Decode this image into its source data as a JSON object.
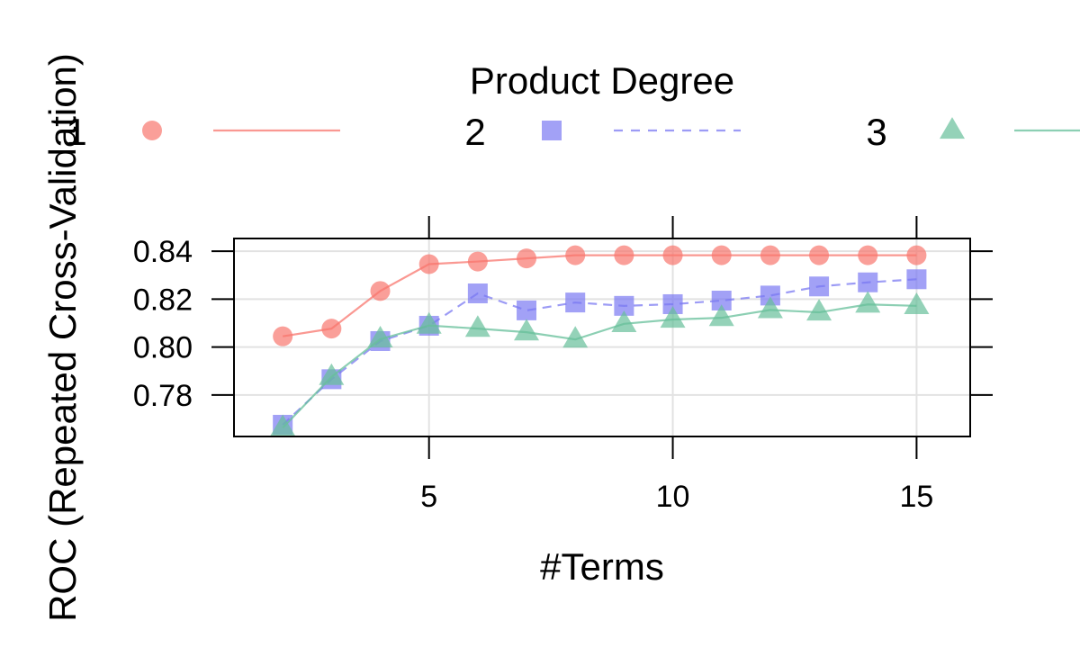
{
  "chart_data": {
    "type": "line",
    "title": "",
    "xlabel": "#Terms",
    "ylabel": "ROC (Repeated Cross-Validation)",
    "legend": {
      "title": "Product Degree",
      "position": "top",
      "labels": [
        "1",
        "2",
        "3"
      ]
    },
    "xlim": [
      1,
      16.1
    ],
    "ylim": [
      0.7627,
      0.8453
    ],
    "x_ticks": [
      5,
      10,
      15
    ],
    "x_tick_labels": [
      "5",
      "10",
      "15"
    ],
    "y_ticks": [
      0.78,
      0.8,
      0.82,
      0.84
    ],
    "y_tick_labels": [
      "0.78",
      "0.80",
      "0.82",
      "0.84"
    ],
    "grid": true,
    "x": [
      2,
      3,
      4,
      5,
      6,
      7,
      8,
      9,
      10,
      11,
      12,
      13,
      14,
      15
    ],
    "series": [
      {
        "name": "1",
        "color": "#F8766D",
        "marker": "circle",
        "line": "solid",
        "values": [
          0.8045,
          0.8077,
          0.8234,
          0.8346,
          0.8357,
          0.837,
          0.8383,
          0.8383,
          0.8383,
          0.8383,
          0.8383,
          0.8383,
          0.8383,
          0.8383
        ]
      },
      {
        "name": "2",
        "color": "#7B79F2",
        "marker": "square",
        "line": "dashed",
        "values": [
          0.7676,
          0.7866,
          0.8025,
          0.8089,
          0.8224,
          0.8153,
          0.8186,
          0.8172,
          0.8179,
          0.8194,
          0.8215,
          0.8253,
          0.827,
          0.8283
        ]
      },
      {
        "name": "3",
        "color": "#66BF9A",
        "marker": "triangle",
        "line": "solid",
        "values": [
          0.7663,
          0.7876,
          0.8033,
          0.809,
          0.8077,
          0.8062,
          0.8032,
          0.8097,
          0.8115,
          0.8122,
          0.8155,
          0.8145,
          0.8178,
          0.8172
        ]
      }
    ]
  }
}
